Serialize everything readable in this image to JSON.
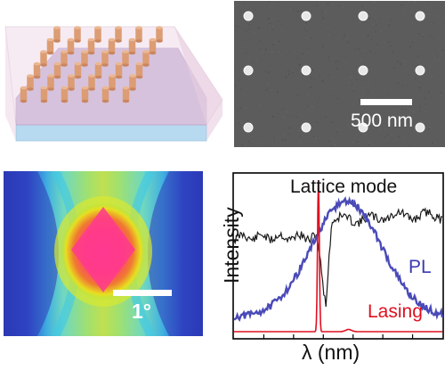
{
  "sem_panel": {
    "scale_label": "500 nm"
  },
  "farfield_panel": {
    "scale_label": "1°"
  },
  "spectrum_panel": {
    "series_labels": {
      "lattice": "Lattice mode",
      "pl": "PL",
      "lasing": "Lasing"
    },
    "y_label": "Intensity",
    "x_label": "λ (nm)"
  },
  "colors": {
    "lattice": "#1a1a1a",
    "pl": "#4a4ab8",
    "lasing": "#e01020",
    "sem_background": "#5b5b5b",
    "nanoparticle": "#e0a078"
  }
}
